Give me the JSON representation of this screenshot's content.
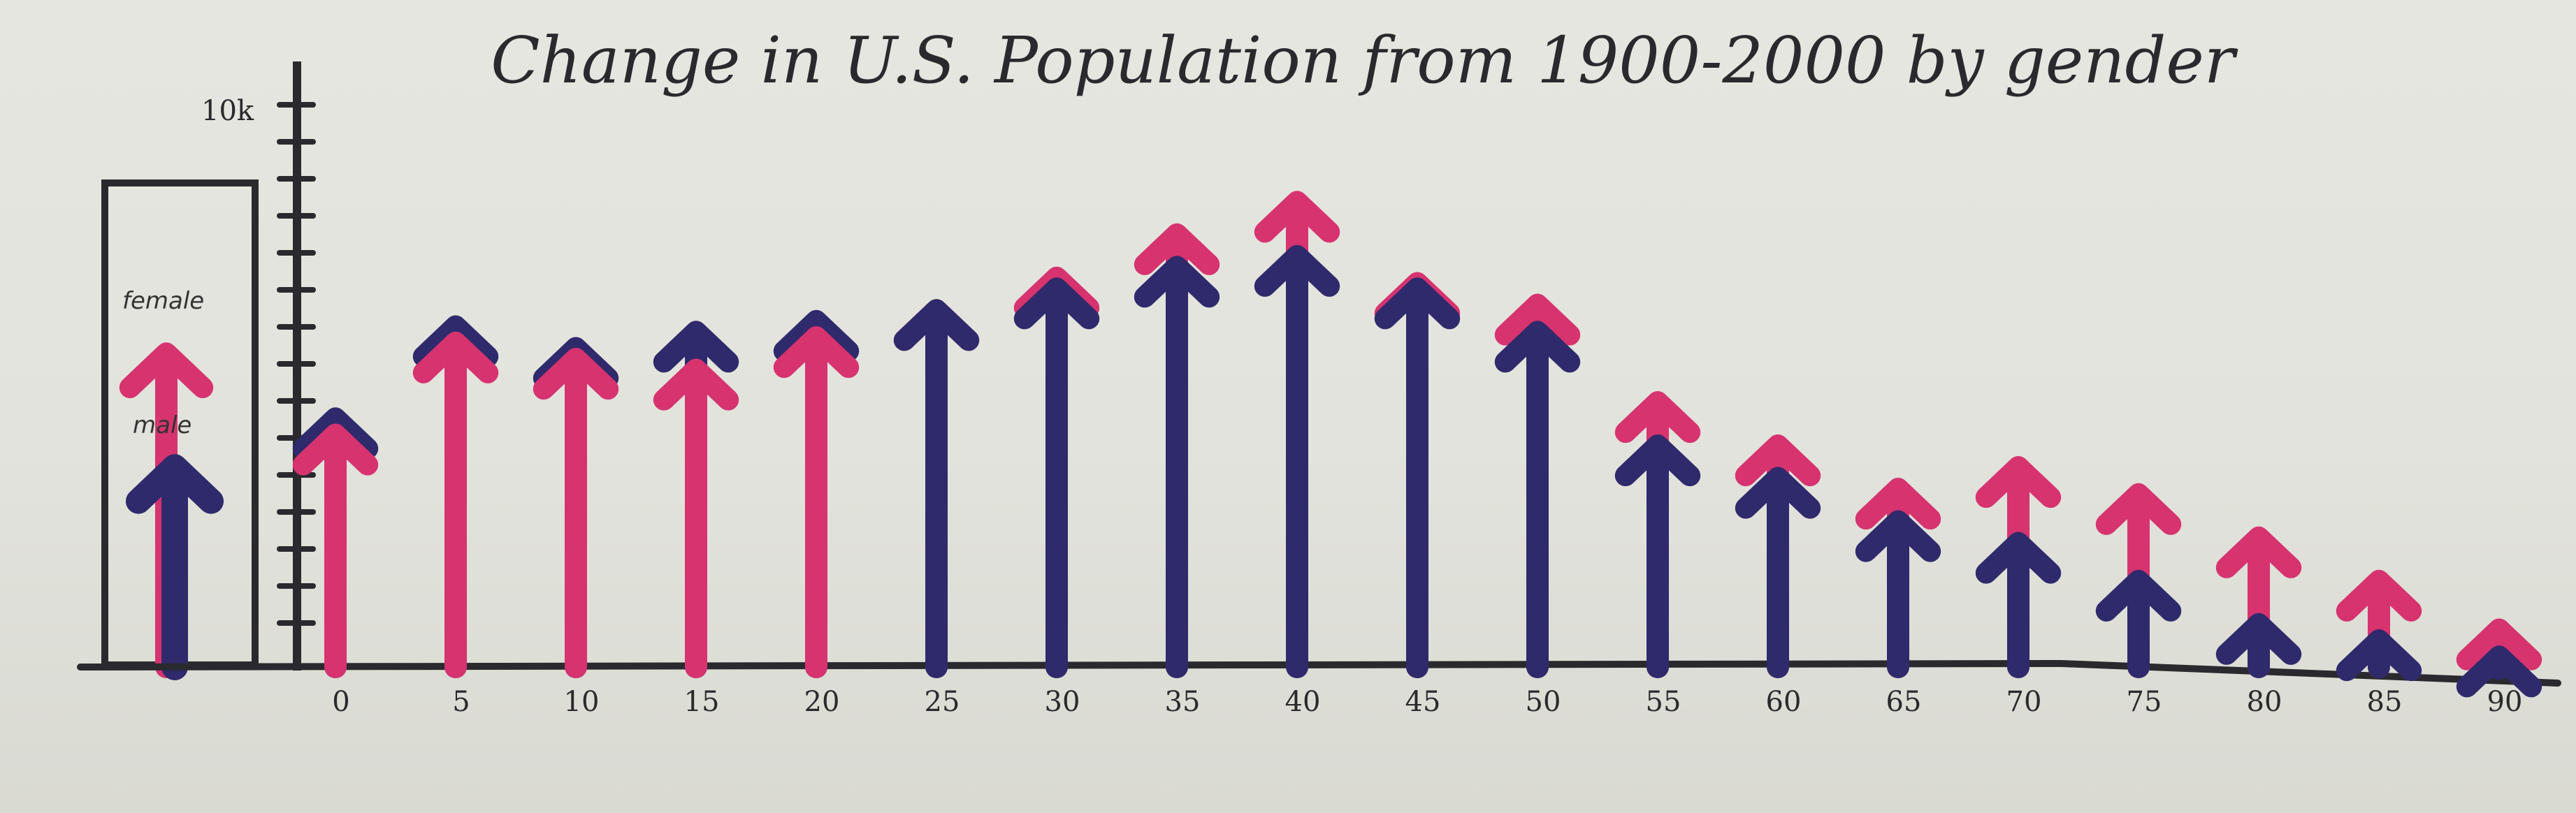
{
  "chart_data": {
    "type": "bar",
    "title": "Change in U.S. Population from 1900-2000 by gender",
    "xlabel": "",
    "ylabel": "",
    "y_axis_max_label": "10k",
    "ylim": [
      0,
      10000
    ],
    "grid": false,
    "legend_placement": "left",
    "categories": [
      "0",
      "5",
      "10",
      "15",
      "20",
      "25",
      "30",
      "35",
      "40",
      "45",
      "50",
      "55",
      "60",
      "65",
      "70",
      "75",
      "80",
      "85",
      "90"
    ],
    "series": [
      {
        "name": "female",
        "color": "#d6336f",
        "values": [
          4300,
          6000,
          5700,
          5500,
          6100,
          6600,
          7200,
          8000,
          8600,
          7100,
          6700,
          4900,
          4100,
          3300,
          3700,
          3200,
          2400,
          1600,
          700
        ]
      },
      {
        "name": "male",
        "color": "#2f2a6b",
        "values": [
          4600,
          6300,
          5900,
          6200,
          6400,
          6600,
          7000,
          7400,
          7600,
          7000,
          6200,
          4100,
          3500,
          2700,
          2300,
          1600,
          800,
          500,
          200
        ]
      }
    ]
  },
  "legend": {
    "female_label": "female",
    "male_label": "male"
  },
  "colors": {
    "axis": "#2a2a2e",
    "female": "#d6336f",
    "male": "#2f2a6b"
  }
}
